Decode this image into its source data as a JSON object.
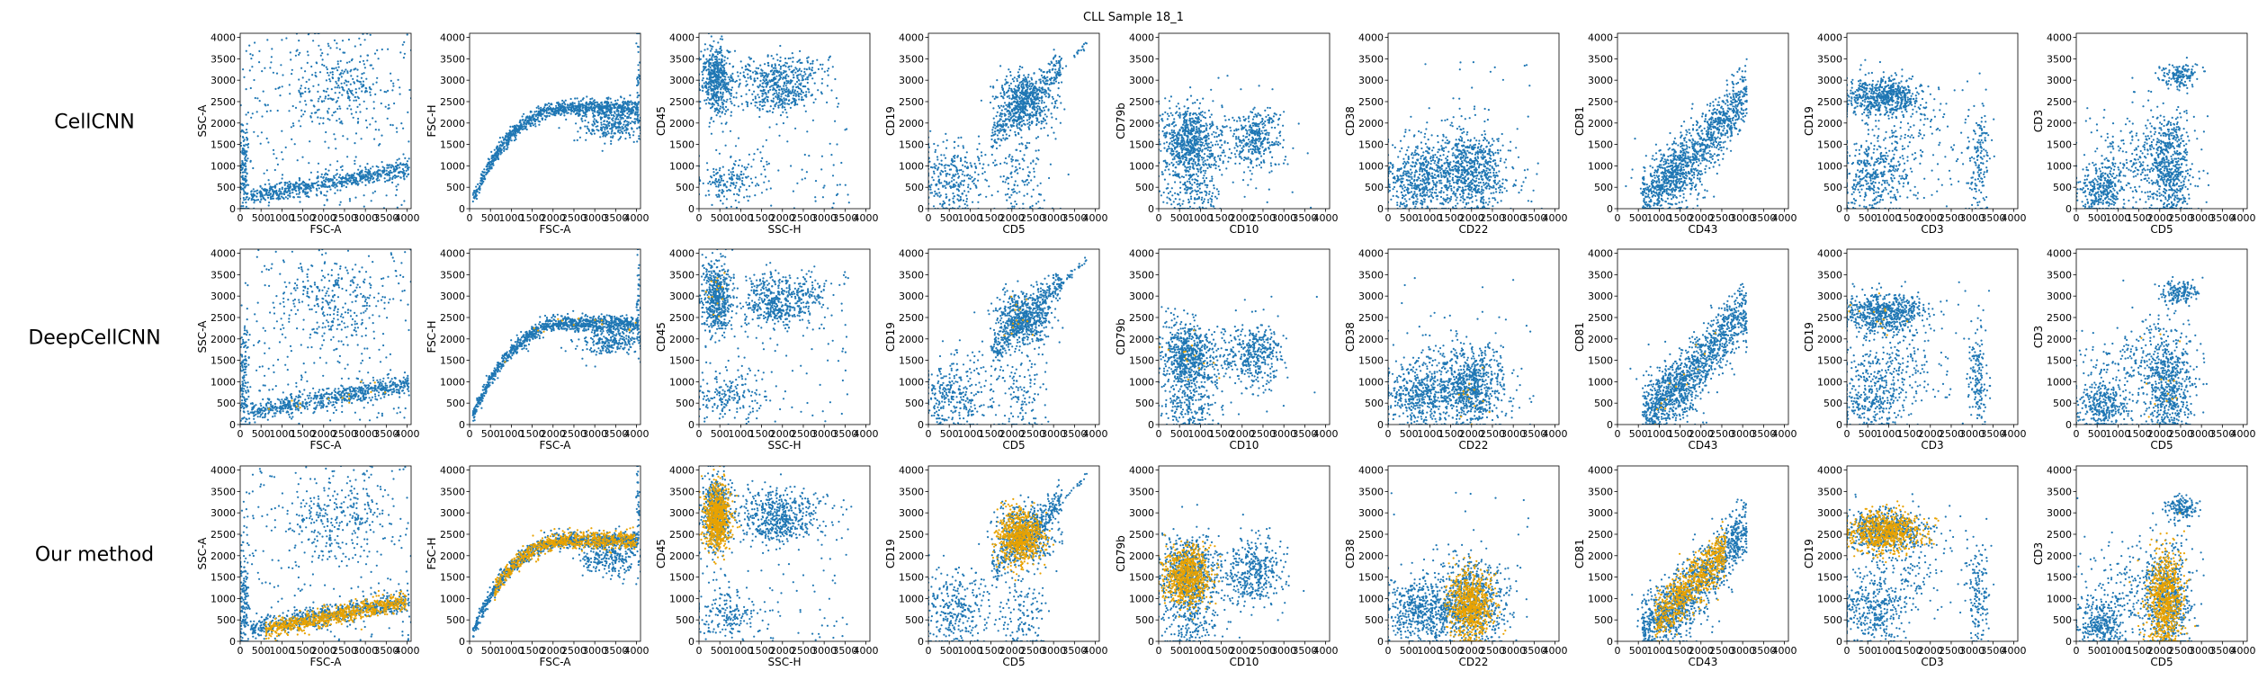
{
  "figure": {
    "title": "CLL Sample 18_1"
  },
  "colors": {
    "population": "#1f77b4",
    "highlighted_cells": "#e8a200"
  },
  "chart_data": {
    "type": "scatter",
    "title": "CLL Sample 18_1",
    "rows": [
      "CellCNN",
      "DeepCellCNN",
      "Our method"
    ],
    "highlight_series_present": [
      false,
      true,
      true
    ],
    "xlim": [
      0,
      4096
    ],
    "ylim": [
      0,
      4096
    ],
    "ticks": [
      0,
      500,
      1000,
      1500,
      2000,
      2500,
      3000,
      3500,
      4000
    ],
    "tick_labels": [
      "0",
      "500",
      "1000",
      "1500",
      "2000",
      "2500",
      "3000",
      "3500",
      "4000"
    ],
    "panels": [
      {
        "xlabel": "FSC-A",
        "ylabel": "SSC-A"
      },
      {
        "xlabel": "FSC-A",
        "ylabel": "FSC-H"
      },
      {
        "xlabel": "SSC-H",
        "ylabel": "CD45"
      },
      {
        "xlabel": "CD5",
        "ylabel": "CD19"
      },
      {
        "xlabel": "CD10",
        "ylabel": "CD79b"
      },
      {
        "xlabel": "CD22",
        "ylabel": "CD38"
      },
      {
        "xlabel": "CD43",
        "ylabel": "CD81"
      },
      {
        "xlabel": "CD3",
        "ylabel": "CD19"
      },
      {
        "xlabel": "CD5",
        "ylabel": "CD3"
      }
    ],
    "populations": [
      {
        "panel": 0,
        "clusters": [
          {
            "kind": "band",
            "x": [
              250,
              4050
            ],
            "y0": 250,
            "slope": 0.17,
            "sd": 110,
            "weight": 5
          },
          {
            "kind": "blob",
            "cx": 2300,
            "cy": 2900,
            "sx": 650,
            "sy": 500,
            "weight": 2
          },
          {
            "kind": "uniform",
            "x": [
              0,
              4096
            ],
            "y": [
              0,
              4096
            ],
            "weight": 2
          },
          {
            "kind": "blob",
            "cx": 100,
            "cy": 900,
            "sx": 60,
            "sy": 700,
            "weight": 1.2
          }
        ]
      },
      {
        "panel": 1,
        "clusters": [
          {
            "kind": "curve",
            "x": [
              80,
              4050
            ],
            "ymax": 2050,
            "k": 0.65,
            "sd": 90,
            "weight": 8
          },
          {
            "kind": "blob",
            "cx": 3400,
            "cy": 1950,
            "sx": 400,
            "sy": 200,
            "weight": 2
          },
          {
            "kind": "blob",
            "cx": 4040,
            "cy": 3000,
            "sx": 20,
            "sy": 700,
            "weight": 0.3
          }
        ]
      },
      {
        "panel": 2,
        "clusters": [
          {
            "kind": "blob",
            "cx": 420,
            "cy": 3000,
            "sx": 170,
            "sy": 420,
            "weight": 4
          },
          {
            "kind": "blob",
            "cx": 1950,
            "cy": 3000,
            "sx": 500,
            "sy": 280,
            "weight": 3
          },
          {
            "kind": "blob",
            "cx": 1900,
            "cy": 2600,
            "sx": 400,
            "sy": 150,
            "weight": 1
          },
          {
            "kind": "blob",
            "cx": 700,
            "cy": 650,
            "sx": 400,
            "sy": 250,
            "weight": 1.3
          },
          {
            "kind": "uniform",
            "x": [
              0,
              3600
            ],
            "y": [
              0,
              3600
            ],
            "weight": 1
          }
        ]
      },
      {
        "panel": 3,
        "clusters": [
          {
            "kind": "blob",
            "cx": 2300,
            "cy": 2500,
            "sx": 330,
            "sy": 330,
            "weight": 5
          },
          {
            "kind": "band",
            "x": [
              1500,
              3200
            ],
            "y0": 150,
            "slope": 1.0,
            "sd": 200,
            "weight": 3
          },
          {
            "kind": "blob",
            "cx": 600,
            "cy": 700,
            "sx": 400,
            "sy": 450,
            "weight": 3
          },
          {
            "kind": "blob",
            "cx": 2200,
            "cy": 700,
            "sx": 350,
            "sy": 600,
            "weight": 1.5
          },
          {
            "kind": "band",
            "x": [
              2900,
              3800
            ],
            "y0": 0,
            "slope": 1.02,
            "sd": 40,
            "weight": 0.3
          }
        ]
      },
      {
        "panel": 4,
        "clusters": [
          {
            "kind": "blob",
            "cx": 700,
            "cy": 1600,
            "sx": 300,
            "sy": 420,
            "weight": 5
          },
          {
            "kind": "blob",
            "cx": 2350,
            "cy": 1650,
            "sx": 300,
            "sy": 350,
            "weight": 2.5
          },
          {
            "kind": "blob",
            "cx": 800,
            "cy": 400,
            "sx": 350,
            "sy": 350,
            "weight": 1.5
          },
          {
            "kind": "blob",
            "cx": 1500,
            "cy": 1500,
            "sx": 500,
            "sy": 400,
            "weight": 1
          },
          {
            "kind": "uniform",
            "x": [
              0,
              3800
            ],
            "y": [
              0,
              3200
            ],
            "weight": 0.2
          }
        ]
      },
      {
        "panel": 5,
        "clusters": [
          {
            "kind": "blob",
            "cx": 2000,
            "cy": 900,
            "sx": 380,
            "sy": 450,
            "weight": 4
          },
          {
            "kind": "blob",
            "cx": 800,
            "cy": 700,
            "sx": 450,
            "sy": 350,
            "weight": 3
          },
          {
            "kind": "blob",
            "cx": 1500,
            "cy": 900,
            "sx": 800,
            "sy": 600,
            "weight": 1.5
          },
          {
            "kind": "uniform",
            "x": [
              0,
              3500
            ],
            "y": [
              0,
              3500
            ],
            "weight": 0.2
          }
        ]
      },
      {
        "panel": 6,
        "clusters": [
          {
            "kind": "band",
            "x": [
              600,
              3100
            ],
            "y0": -500,
            "slope": 1.0,
            "sd": 350,
            "weight": 7
          },
          {
            "kind": "blob",
            "cx": 1400,
            "cy": 700,
            "sx": 400,
            "sy": 400,
            "weight": 1.5
          }
        ]
      },
      {
        "panel": 7,
        "clusters": [
          {
            "kind": "blob",
            "cx": 900,
            "cy": 2600,
            "sx": 480,
            "sy": 230,
            "weight": 5
          },
          {
            "kind": "blob",
            "cx": 600,
            "cy": 700,
            "sx": 450,
            "sy": 450,
            "weight": 3
          },
          {
            "kind": "blob",
            "cx": 3150,
            "cy": 1100,
            "sx": 130,
            "sy": 600,
            "weight": 1.2
          },
          {
            "kind": "blob",
            "cx": 1400,
            "cy": 1500,
            "sx": 600,
            "sy": 500,
            "weight": 1
          },
          {
            "kind": "uniform",
            "x": [
              0,
              3500
            ],
            "y": [
              0,
              3500
            ],
            "weight": 0.3
          }
        ]
      },
      {
        "panel": 8,
        "clusters": [
          {
            "kind": "blob",
            "cx": 2200,
            "cy": 900,
            "sx": 280,
            "sy": 650,
            "weight": 5
          },
          {
            "kind": "blob",
            "cx": 600,
            "cy": 400,
            "sx": 300,
            "sy": 300,
            "weight": 2.5
          },
          {
            "kind": "blob",
            "cx": 2500,
            "cy": 3100,
            "sx": 220,
            "sy": 140,
            "weight": 1.2
          },
          {
            "kind": "blob",
            "cx": 1300,
            "cy": 1200,
            "sx": 600,
            "sy": 600,
            "weight": 1.5
          },
          {
            "kind": "uniform",
            "x": [
              0,
              3200
            ],
            "y": [
              0,
              3500
            ],
            "weight": 0.3
          }
        ]
      }
    ],
    "highlighted_cells": [
      {
        "panel": 0,
        "clusters": [
          {
            "kind": "band",
            "x": [
              600,
              4000
            ],
            "y0": 150,
            "slope": 0.2,
            "sd": 110
          }
        ]
      },
      {
        "panel": 1,
        "clusters": [
          {
            "kind": "curve",
            "x": [
              600,
              4000
            ],
            "ymax": 2050,
            "k": 0.65,
            "sd": 110
          }
        ]
      },
      {
        "panel": 2,
        "clusters": [
          {
            "kind": "blob",
            "cx": 450,
            "cy": 2900,
            "sx": 160,
            "sy": 380
          }
        ]
      },
      {
        "panel": 3,
        "clusters": [
          {
            "kind": "blob",
            "cx": 2200,
            "cy": 2450,
            "sx": 270,
            "sy": 300
          }
        ]
      },
      {
        "panel": 4,
        "clusters": [
          {
            "kind": "blob",
            "cx": 700,
            "cy": 1550,
            "sx": 270,
            "sy": 350
          }
        ]
      },
      {
        "panel": 5,
        "clusters": [
          {
            "kind": "blob",
            "cx": 2000,
            "cy": 800,
            "sx": 260,
            "sy": 380
          }
        ]
      },
      {
        "panel": 6,
        "clusters": [
          {
            "kind": "band",
            "x": [
              900,
              2600
            ],
            "y0": -450,
            "slope": 1.0,
            "sd": 300
          }
        ]
      },
      {
        "panel": 7,
        "clusters": [
          {
            "kind": "blob",
            "cx": 900,
            "cy": 2550,
            "sx": 450,
            "sy": 230
          }
        ]
      },
      {
        "panel": 8,
        "clusters": [
          {
            "kind": "blob",
            "cx": 2150,
            "cy": 1000,
            "sx": 220,
            "sy": 550
          }
        ]
      }
    ]
  }
}
